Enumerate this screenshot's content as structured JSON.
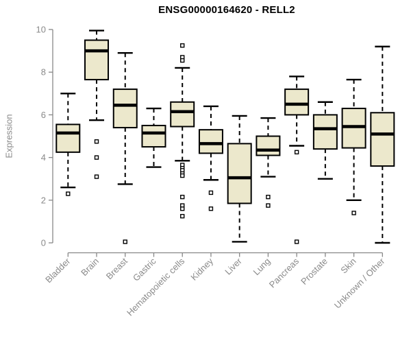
{
  "chart_data": {
    "type": "boxplot",
    "title": "ENSG00000164620 - RELL2",
    "ylabel": "Expression",
    "xlabel": "",
    "ylim": [
      0,
      10
    ],
    "yticks": [
      0,
      2,
      4,
      6,
      8,
      10
    ],
    "grid": false,
    "legend": "none",
    "box_fill": "#ECE8CC",
    "box_border": "#000000",
    "median_color": "#000000",
    "axis_color": "#878787",
    "tick_label_color": "#8a8a8a",
    "categories": [
      "Bladder",
      "Brain",
      "Breast",
      "Gastric",
      "Hematopoietic cells",
      "Kidney",
      "Liver",
      "Lung",
      "Pancreas",
      "Prostate",
      "Skin",
      "Unknown / Other"
    ],
    "series": [
      {
        "name": "Bladder",
        "whisker_low": 2.6,
        "q1": 4.25,
        "median": 5.15,
        "q3": 5.55,
        "whisker_high": 7.0,
        "outliers": [
          2.3
        ]
      },
      {
        "name": "Brain",
        "whisker_low": 5.75,
        "q1": 7.65,
        "median": 9.0,
        "q3": 9.5,
        "whisker_high": 9.95,
        "outliers": [
          4.75,
          4.0,
          3.1
        ]
      },
      {
        "name": "Breast",
        "whisker_low": 2.75,
        "q1": 5.4,
        "median": 6.45,
        "q3": 7.2,
        "whisker_high": 8.9,
        "outliers": [
          0.05
        ]
      },
      {
        "name": "Gastric",
        "whisker_low": 3.55,
        "q1": 4.5,
        "median": 5.15,
        "q3": 5.5,
        "whisker_high": 6.3,
        "outliers": []
      },
      {
        "name": "Hematopoietic cells",
        "whisker_low": 3.85,
        "q1": 5.45,
        "median": 6.15,
        "q3": 6.6,
        "whisker_high": 8.2,
        "outliers": [
          9.25,
          8.7,
          8.55,
          3.65,
          3.5,
          3.4,
          3.25,
          3.15,
          2.15,
          1.75,
          1.6,
          1.25
        ]
      },
      {
        "name": "Kidney",
        "whisker_low": 2.95,
        "q1": 4.2,
        "median": 4.65,
        "q3": 5.3,
        "whisker_high": 6.4,
        "outliers": [
          2.35,
          1.6
        ]
      },
      {
        "name": "Liver",
        "whisker_low": 0.05,
        "q1": 1.85,
        "median": 3.05,
        "q3": 4.65,
        "whisker_high": 5.95,
        "outliers": []
      },
      {
        "name": "Lung",
        "whisker_low": 3.1,
        "q1": 4.1,
        "median": 4.35,
        "q3": 5.0,
        "whisker_high": 5.85,
        "outliers": [
          2.15,
          1.75
        ]
      },
      {
        "name": "Pancreas",
        "whisker_low": 4.55,
        "q1": 6.0,
        "median": 6.5,
        "q3": 7.2,
        "whisker_high": 7.8,
        "outliers": [
          4.25,
          0.05
        ]
      },
      {
        "name": "Prostate",
        "whisker_low": 3.0,
        "q1": 4.4,
        "median": 5.35,
        "q3": 6.0,
        "whisker_high": 6.6,
        "outliers": []
      },
      {
        "name": "Skin",
        "whisker_low": 2.0,
        "q1": 4.45,
        "median": 5.45,
        "q3": 6.3,
        "whisker_high": 7.65,
        "outliers": [
          1.4
        ]
      },
      {
        "name": "Unknown / Other",
        "whisker_low": 0.0,
        "q1": 3.6,
        "median": 5.1,
        "q3": 6.1,
        "whisker_high": 9.2,
        "outliers": []
      }
    ]
  }
}
